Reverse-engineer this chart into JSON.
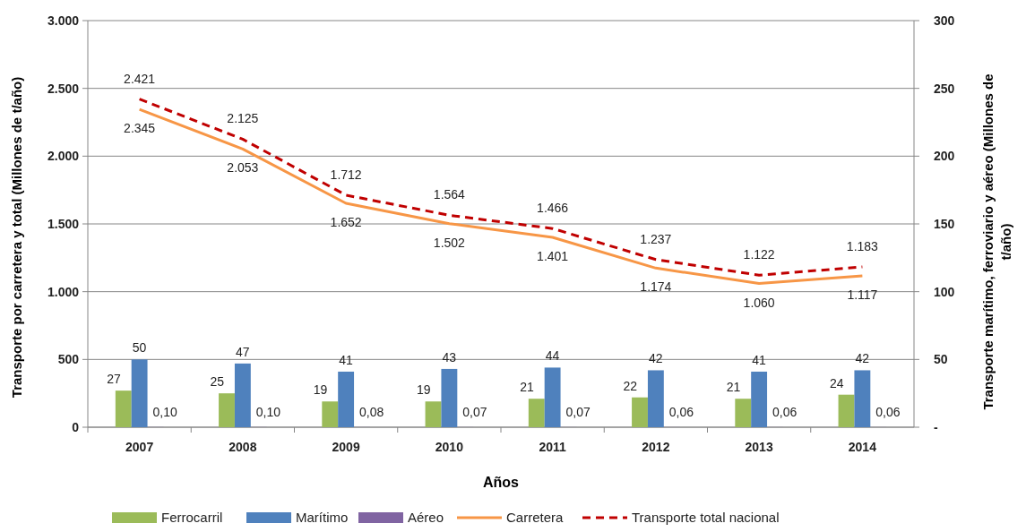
{
  "chart_data": {
    "type": "bar",
    "xlabel": "Años",
    "ylabel": "Transporte por carretera y total (Millones de t/año)",
    "y2label": "Transporte marítimo, ferroviario y aéreo (Millones de t/año)",
    "categories": [
      "2007",
      "2008",
      "2009",
      "2010",
      "2011",
      "2012",
      "2013",
      "2014"
    ],
    "series": [
      {
        "name": "Ferrocarril",
        "axis": "y2",
        "color": "#9bbb59",
        "values": [
          27,
          25,
          19,
          19,
          21,
          22,
          21,
          24
        ],
        "value_labels": [
          "27",
          "25",
          "19",
          "19",
          "21",
          "22",
          "21",
          "24"
        ]
      },
      {
        "name": "Marítimo",
        "axis": "y2",
        "color": "#4f81bd",
        "values": [
          50,
          47,
          41,
          43,
          44,
          42,
          41,
          42
        ],
        "value_labels": [
          "50",
          "47",
          "41",
          "43",
          "44",
          "42",
          "41",
          "42"
        ]
      },
      {
        "name": "Aéreo",
        "axis": "y2",
        "color": "#8064a2",
        "values": [
          0.1,
          0.1,
          0.08,
          0.07,
          0.07,
          0.06,
          0.06,
          0.06
        ],
        "value_labels": [
          "0,10",
          "0,10",
          "0,08",
          "0,07",
          "0,07",
          "0,06",
          "0,06",
          "0,06"
        ]
      },
      {
        "name": "Carretera",
        "type": "line",
        "line_style": "solid",
        "color": "#f79646",
        "values": [
          2345,
          2053,
          1652,
          1502,
          1401,
          1174,
          1060,
          1117
        ],
        "value_labels": [
          "2.345",
          "2.053",
          "1.652",
          "1.502",
          "1.401",
          "1.174",
          "1.060",
          "1.117"
        ]
      },
      {
        "name": "Transporte total nacional",
        "type": "line",
        "line_style": "dashed",
        "color": "#c00000",
        "values": [
          2421,
          2125,
          1712,
          1564,
          1466,
          1237,
          1122,
          1183
        ],
        "value_labels": [
          "2.421",
          "2.125",
          "1.712",
          "1.564",
          "1.466",
          "1.237",
          "1.122",
          "1.183"
        ]
      }
    ],
    "ylim": [
      0,
      3000
    ],
    "yticks": [
      0,
      {
        "value": 500,
        "label": "500"
      },
      {
        "value": 1000,
        "label": "1.000"
      },
      {
        "value": 1500,
        "label": "1.500"
      },
      {
        "value": 2000,
        "label": "2.000"
      },
      {
        "value": 2500,
        "label": "2.500"
      },
      {
        "value": 3000,
        "label": "3.000"
      }
    ],
    "y2lim": [
      0,
      300
    ],
    "y2ticks": [
      {
        "value": 0,
        "label": "-"
      },
      50,
      100,
      150,
      200,
      250,
      300
    ],
    "grid": "y",
    "legend": "bottom",
    "marker": "none"
  }
}
